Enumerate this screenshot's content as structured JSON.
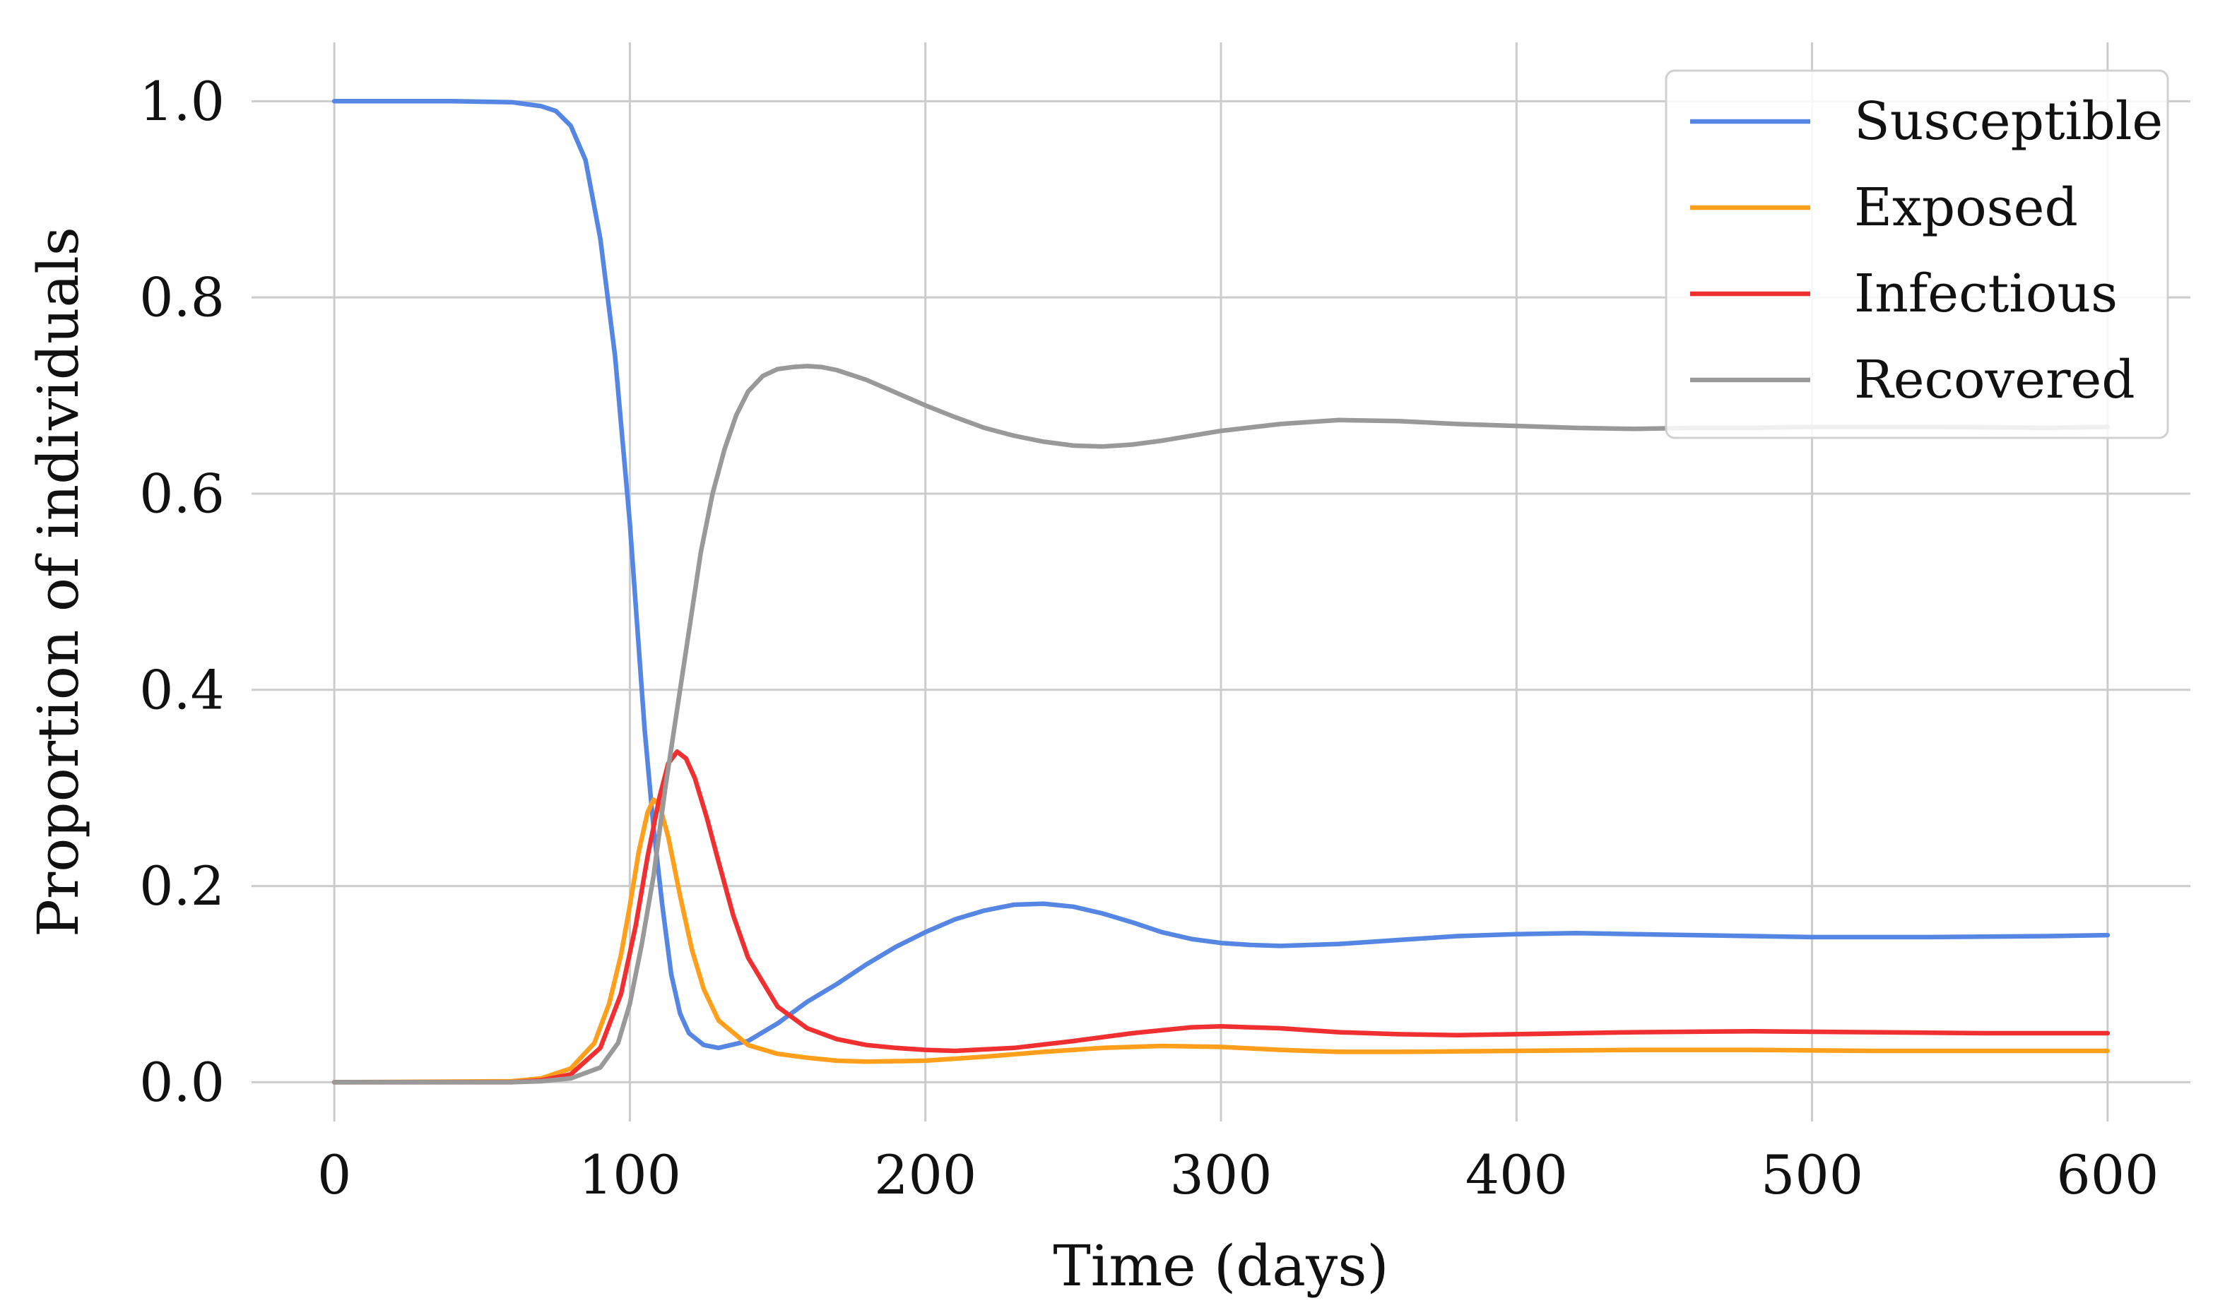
{
  "chart_data": {
    "type": "line",
    "title": "",
    "xlabel": "Time (days)",
    "ylabel": "Proportion of individuals",
    "xlim": [
      -28,
      628
    ],
    "ylim": [
      -0.04,
      1.06
    ],
    "xticks": [
      0,
      100,
      200,
      300,
      400,
      500,
      600
    ],
    "yticks": [
      0.0,
      0.2,
      0.4,
      0.6,
      0.8,
      1.0
    ],
    "xtick_labels": [
      "0",
      "100",
      "200",
      "300",
      "400",
      "500",
      "600"
    ],
    "ytick_labels": [
      "0.0",
      "0.2",
      "0.4",
      "0.6",
      "0.8",
      "1.0"
    ],
    "grid": true,
    "legend_position": "top-right",
    "series": [
      {
        "name": "Susceptible",
        "color": "#5586e3",
        "points": [
          [
            0,
            1.0
          ],
          [
            40,
            1.0
          ],
          [
            60,
            0.999
          ],
          [
            70,
            0.995
          ],
          [
            75,
            0.99
          ],
          [
            80,
            0.975
          ],
          [
            85,
            0.94
          ],
          [
            90,
            0.86
          ],
          [
            95,
            0.74
          ],
          [
            100,
            0.57
          ],
          [
            105,
            0.36
          ],
          [
            108,
            0.26
          ],
          [
            111,
            0.18
          ],
          [
            114,
            0.11
          ],
          [
            117,
            0.07
          ],
          [
            120,
            0.05
          ],
          [
            125,
            0.038
          ],
          [
            130,
            0.035
          ],
          [
            140,
            0.042
          ],
          [
            150,
            0.06
          ],
          [
            160,
            0.082
          ],
          [
            170,
            0.1
          ],
          [
            180,
            0.12
          ],
          [
            190,
            0.138
          ],
          [
            200,
            0.153
          ],
          [
            210,
            0.166
          ],
          [
            220,
            0.175
          ],
          [
            230,
            0.181
          ],
          [
            240,
            0.182
          ],
          [
            250,
            0.179
          ],
          [
            260,
            0.172
          ],
          [
            270,
            0.163
          ],
          [
            280,
            0.153
          ],
          [
            290,
            0.146
          ],
          [
            300,
            0.142
          ],
          [
            310,
            0.14
          ],
          [
            320,
            0.139
          ],
          [
            340,
            0.141
          ],
          [
            360,
            0.145
          ],
          [
            380,
            0.149
          ],
          [
            400,
            0.151
          ],
          [
            420,
            0.152
          ],
          [
            440,
            0.151
          ],
          [
            460,
            0.15
          ],
          [
            480,
            0.149
          ],
          [
            500,
            0.148
          ],
          [
            540,
            0.148
          ],
          [
            580,
            0.149
          ],
          [
            600,
            0.15
          ]
        ]
      },
      {
        "name": "Exposed",
        "color": "#ff9f1c",
        "points": [
          [
            0,
            0.0
          ],
          [
            60,
            0.001
          ],
          [
            70,
            0.004
          ],
          [
            80,
            0.014
          ],
          [
            88,
            0.04
          ],
          [
            93,
            0.08
          ],
          [
            97,
            0.13
          ],
          [
            100,
            0.18
          ],
          [
            103,
            0.235
          ],
          [
            106,
            0.275
          ],
          [
            108,
            0.288
          ],
          [
            110,
            0.283
          ],
          [
            113,
            0.25
          ],
          [
            117,
            0.19
          ],
          [
            121,
            0.135
          ],
          [
            125,
            0.095
          ],
          [
            130,
            0.063
          ],
          [
            140,
            0.038
          ],
          [
            150,
            0.029
          ],
          [
            160,
            0.025
          ],
          [
            170,
            0.022
          ],
          [
            180,
            0.021
          ],
          [
            200,
            0.022
          ],
          [
            220,
            0.026
          ],
          [
            240,
            0.031
          ],
          [
            260,
            0.035
          ],
          [
            280,
            0.037
          ],
          [
            300,
            0.036
          ],
          [
            320,
            0.033
          ],
          [
            340,
            0.031
          ],
          [
            360,
            0.031
          ],
          [
            400,
            0.032
          ],
          [
            440,
            0.033
          ],
          [
            480,
            0.033
          ],
          [
            520,
            0.032
          ],
          [
            560,
            0.032
          ],
          [
            600,
            0.032
          ]
        ]
      },
      {
        "name": "Infectious",
        "color": "#f03030",
        "points": [
          [
            0,
            0.0
          ],
          [
            60,
            0.0
          ],
          [
            70,
            0.002
          ],
          [
            80,
            0.008
          ],
          [
            90,
            0.035
          ],
          [
            97,
            0.09
          ],
          [
            102,
            0.16
          ],
          [
            106,
            0.23
          ],
          [
            110,
            0.29
          ],
          [
            113,
            0.325
          ],
          [
            116,
            0.337
          ],
          [
            119,
            0.33
          ],
          [
            122,
            0.31
          ],
          [
            126,
            0.27
          ],
          [
            130,
            0.225
          ],
          [
            135,
            0.17
          ],
          [
            140,
            0.127
          ],
          [
            150,
            0.077
          ],
          [
            160,
            0.055
          ],
          [
            170,
            0.044
          ],
          [
            180,
            0.038
          ],
          [
            190,
            0.035
          ],
          [
            200,
            0.033
          ],
          [
            210,
            0.032
          ],
          [
            230,
            0.035
          ],
          [
            250,
            0.042
          ],
          [
            270,
            0.05
          ],
          [
            290,
            0.056
          ],
          [
            300,
            0.057
          ],
          [
            320,
            0.055
          ],
          [
            340,
            0.051
          ],
          [
            360,
            0.049
          ],
          [
            380,
            0.048
          ],
          [
            400,
            0.049
          ],
          [
            440,
            0.051
          ],
          [
            480,
            0.052
          ],
          [
            520,
            0.051
          ],
          [
            560,
            0.05
          ],
          [
            600,
            0.05
          ]
        ]
      },
      {
        "name": "Recovered",
        "color": "#999999",
        "points": [
          [
            0,
            0.0
          ],
          [
            60,
            0.0
          ],
          [
            70,
            0.001
          ],
          [
            80,
            0.004
          ],
          [
            90,
            0.015
          ],
          [
            96,
            0.04
          ],
          [
            100,
            0.08
          ],
          [
            104,
            0.14
          ],
          [
            108,
            0.21
          ],
          [
            112,
            0.3
          ],
          [
            116,
            0.38
          ],
          [
            120,
            0.46
          ],
          [
            124,
            0.54
          ],
          [
            128,
            0.6
          ],
          [
            132,
            0.645
          ],
          [
            136,
            0.68
          ],
          [
            140,
            0.704
          ],
          [
            145,
            0.72
          ],
          [
            150,
            0.727
          ],
          [
            155,
            0.729
          ],
          [
            160,
            0.73
          ],
          [
            165,
            0.729
          ],
          [
            170,
            0.726
          ],
          [
            180,
            0.716
          ],
          [
            190,
            0.703
          ],
          [
            200,
            0.69
          ],
          [
            210,
            0.678
          ],
          [
            220,
            0.667
          ],
          [
            230,
            0.659
          ],
          [
            240,
            0.653
          ],
          [
            250,
            0.649
          ],
          [
            260,
            0.648
          ],
          [
            270,
            0.65
          ],
          [
            280,
            0.654
          ],
          [
            290,
            0.659
          ],
          [
            300,
            0.664
          ],
          [
            320,
            0.671
          ],
          [
            340,
            0.675
          ],
          [
            360,
            0.674
          ],
          [
            380,
            0.671
          ],
          [
            400,
            0.669
          ],
          [
            420,
            0.667
          ],
          [
            440,
            0.666
          ],
          [
            460,
            0.667
          ],
          [
            480,
            0.667
          ],
          [
            500,
            0.668
          ],
          [
            540,
            0.668
          ],
          [
            580,
            0.667
          ],
          [
            600,
            0.668
          ]
        ]
      }
    ]
  }
}
